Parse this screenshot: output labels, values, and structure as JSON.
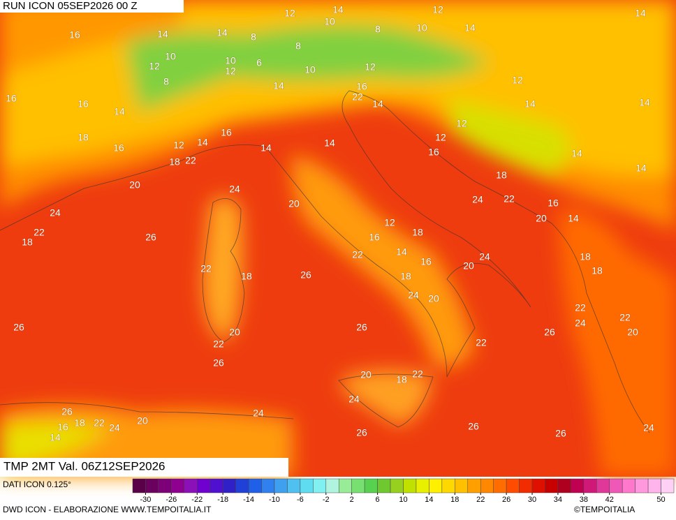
{
  "header": {
    "run": "RUN ICON 05SEP2026 00 Z",
    "validity": "TMP 2MT Val. 06Z12SEP2026"
  },
  "footer": {
    "data_source": "DATI ICON 0.125°",
    "credits": "DWD ICON - ELABORAZIONE WWW.TEMPOITALIA.IT",
    "brand": "©TEMPOITALIA"
  },
  "map_labels": [
    12,
    14,
    10,
    12,
    14,
    16,
    14,
    14,
    8,
    8,
    10,
    14,
    10,
    8,
    12,
    10,
    6,
    12,
    10,
    12,
    8,
    14,
    16,
    12,
    16,
    16,
    22,
    14,
    14,
    14,
    14,
    12,
    18,
    16,
    12,
    14,
    16,
    14,
    14,
    12,
    16,
    14,
    18,
    22,
    14,
    18,
    20,
    24,
    24,
    22,
    16,
    24,
    20,
    20,
    14,
    22,
    18,
    26,
    12,
    18,
    16,
    14,
    22,
    24,
    16,
    20,
    18,
    22,
    18,
    26,
    18,
    18,
    24,
    20,
    22,
    22,
    26,
    24,
    26,
    26,
    20,
    20,
    22,
    22,
    26,
    20,
    18,
    22,
    24,
    26,
    24,
    16,
    18,
    22,
    24,
    20,
    14,
    26,
    26,
    26,
    24
  ],
  "colorbar": {
    "lim": [
      -32,
      52
    ],
    "ticks": [
      -30,
      -26,
      -22,
      -18,
      -14,
      -10,
      -6,
      -2,
      2,
      6,
      10,
      14,
      18,
      22,
      26,
      30,
      34,
      38,
      42,
      50
    ],
    "colors": [
      "#5a0048",
      "#6c005e",
      "#7e0078",
      "#900090",
      "#8c10b8",
      "#7000d0",
      "#5010d0",
      "#3020c8",
      "#2040d8",
      "#2060e8",
      "#3080f0",
      "#40a0f0",
      "#50c0f0",
      "#60dcf0",
      "#80f0f0",
      "#b0f4e0",
      "#98ec98",
      "#78e070",
      "#58d050",
      "#70c830",
      "#98d020",
      "#c0e000",
      "#e8f000",
      "#fff000",
      "#ffd800",
      "#ffc000",
      "#ffa000",
      "#ff8800",
      "#ff6c00",
      "#ff4c00",
      "#f02c00",
      "#e01000",
      "#c80000",
      "#b00020",
      "#c00050",
      "#d01878",
      "#e03898",
      "#f058b8",
      "#ff78cc",
      "#ff98dc",
      "#ffb4ec",
      "#ffd0f6"
    ]
  }
}
